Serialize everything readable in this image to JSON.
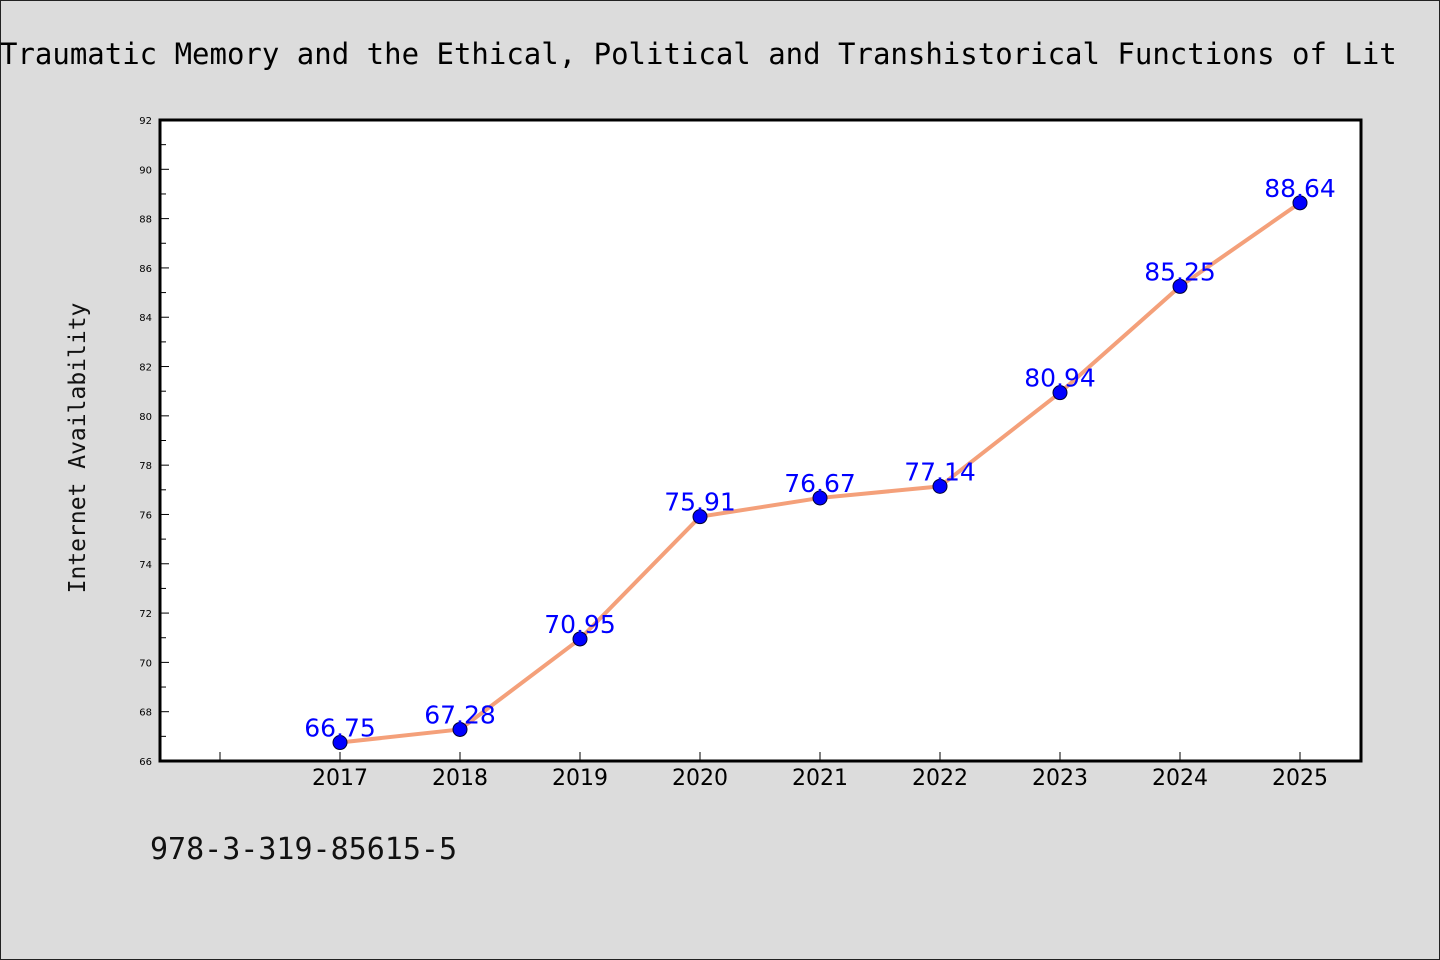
{
  "chart_data": {
    "type": "line",
    "title": "Traumatic Memory and the Ethical, Political and Transhistorical Functions of Lit",
    "xlabel": "",
    "ylabel": "Internet Availability",
    "categories": [
      "2017",
      "2018",
      "2019",
      "2020",
      "2021",
      "2022",
      "2023",
      "2024",
      "2025"
    ],
    "values": [
      66.75,
      67.28,
      70.95,
      75.91,
      76.67,
      77.14,
      80.94,
      85.25,
      88.64
    ],
    "data_labels": [
      "66.75",
      "67.28",
      "70.95",
      "75.91",
      "76.67",
      "77.14",
      "80.94",
      "85.25",
      "88.64"
    ],
    "ylim": [
      66,
      92
    ],
    "yticks": [
      "66",
      "68",
      "70",
      "72",
      "74",
      "76",
      "78",
      "80",
      "82",
      "84",
      "86",
      "88",
      "90",
      "92"
    ],
    "grid": false,
    "legend": "none",
    "line_color": "#f4a07a",
    "marker_color": "#0000ff",
    "label_color": "#0000ff"
  },
  "footer": {
    "isbn": "978-3-319-85615-5"
  }
}
